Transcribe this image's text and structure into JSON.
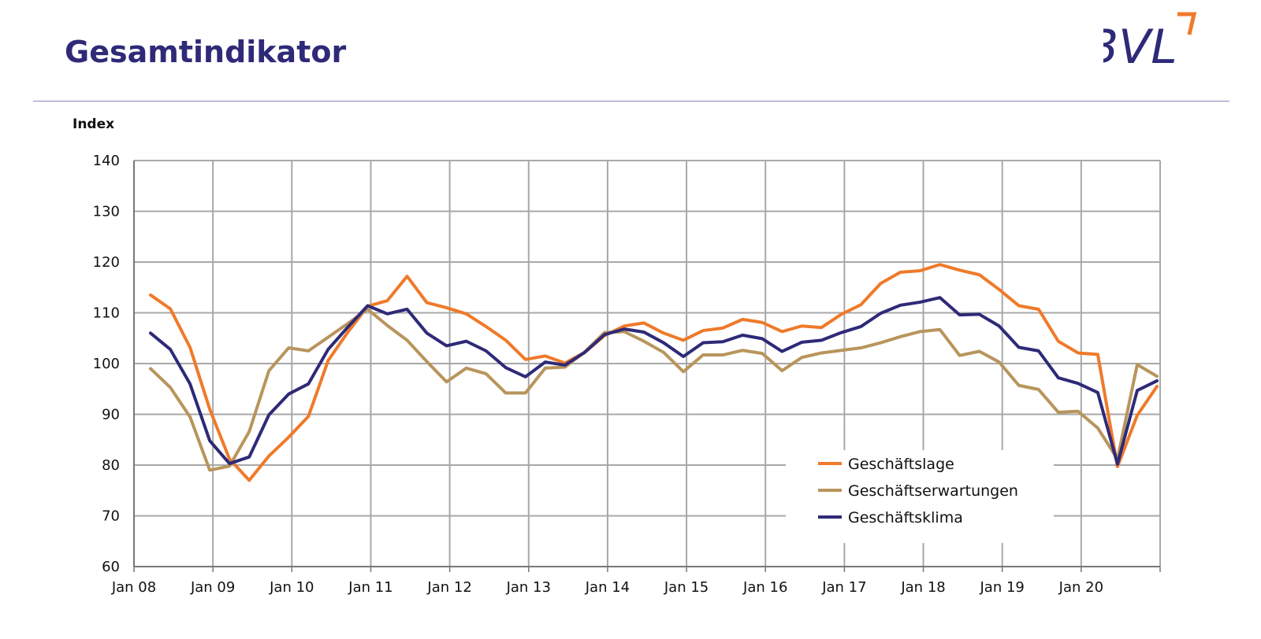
{
  "header": {
    "title": "Gesamtindikator",
    "logo_text": "BVL"
  },
  "colors": {
    "title": "#2e2a78",
    "logo": "#2e2a78",
    "logo_accent": "#f07a2a",
    "grid": "#a8a8a8"
  },
  "chart_data": {
    "type": "line",
    "ylabel": "Index",
    "ylim": [
      60,
      140
    ],
    "yticks": [
      60,
      70,
      80,
      90,
      100,
      110,
      120,
      130,
      140
    ],
    "xlim": [
      2008.0,
      2021.0
    ],
    "xtick_labels": [
      "Jan 08",
      "Jan 09",
      "Jan 10",
      "Jan 11",
      "Jan 12",
      "Jan 13",
      "Jan 14",
      "Jan 15",
      "Jan 16",
      "Jan 17",
      "Jan 18",
      "Jan 19",
      "Jan 20"
    ],
    "grid": true,
    "legend_position": "bottom-right",
    "x": [
      2008.21,
      2008.46,
      2008.71,
      2008.96,
      2009.21,
      2009.46,
      2009.71,
      2009.96,
      2010.21,
      2010.46,
      2010.71,
      2010.96,
      2011.21,
      2011.46,
      2011.71,
      2011.96,
      2012.21,
      2012.46,
      2012.71,
      2012.96,
      2013.21,
      2013.46,
      2013.71,
      2013.96,
      2014.21,
      2014.46,
      2014.71,
      2014.96,
      2015.21,
      2015.46,
      2015.71,
      2015.96,
      2016.21,
      2016.46,
      2016.71,
      2016.96,
      2017.21,
      2017.46,
      2017.71,
      2017.96,
      2018.21,
      2018.46,
      2018.71,
      2018.96,
      2019.21,
      2019.46,
      2019.71,
      2019.96,
      2020.21,
      2020.46,
      2020.71,
      2020.96
    ],
    "series": [
      {
        "name": "Geschäftslage",
        "color": "#ef7a2a",
        "values": [
          113.5,
          110.8,
          103.2,
          91.0,
          81.2,
          77.0,
          81.8,
          85.5,
          89.6,
          100.6,
          106.2,
          111.3,
          112.4,
          117.2,
          112.0,
          111.0,
          109.8,
          107.3,
          104.6,
          100.8,
          101.5,
          100.1,
          102.2,
          105.5,
          107.4,
          108.0,
          106.0,
          104.6,
          106.5,
          107.0,
          108.7,
          108.1,
          106.3,
          107.4,
          107.1,
          109.7,
          111.6,
          115.8,
          118.0,
          118.3,
          119.5,
          118.4,
          117.5,
          114.6,
          111.4,
          110.7,
          104.4,
          102.1,
          101.8,
          79.7,
          89.8,
          95.5
        ]
      },
      {
        "name": "Geschäftserwartungen",
        "color": "#b8955c",
        "values": [
          99.0,
          95.3,
          89.5,
          79.0,
          79.8,
          86.6,
          98.6,
          103.1,
          102.5,
          105.2,
          107.9,
          110.7,
          107.5,
          104.6,
          100.4,
          96.4,
          99.1,
          98.0,
          94.2,
          94.2,
          99.1,
          99.3,
          102.3,
          106.1,
          106.3,
          104.4,
          102.2,
          98.4,
          101.7,
          101.7,
          102.6,
          102.0,
          98.6,
          101.2,
          102.1,
          102.6,
          103.1,
          104.1,
          105.3,
          106.3,
          106.7,
          101.6,
          102.4,
          100.3,
          95.7,
          94.9,
          90.4,
          90.6,
          87.3,
          81.2,
          99.8,
          97.5
        ]
      },
      {
        "name": "Geschäftsklima",
        "color": "#2e2a78",
        "values": [
          106.0,
          102.8,
          96.0,
          84.8,
          80.3,
          81.6,
          89.9,
          94.0,
          96.0,
          102.8,
          107.2,
          111.4,
          109.8,
          110.7,
          106.0,
          103.5,
          104.4,
          102.5,
          99.2,
          97.4,
          100.3,
          99.7,
          102.2,
          105.7,
          106.8,
          106.2,
          104.1,
          101.4,
          104.1,
          104.3,
          105.6,
          104.9,
          102.4,
          104.2,
          104.6,
          106.1,
          107.3,
          109.9,
          111.5,
          112.1,
          113.0,
          109.6,
          109.7,
          107.4,
          103.2,
          102.5,
          97.2,
          96.1,
          94.3,
          80.2,
          94.7,
          96.6
        ]
      }
    ]
  }
}
